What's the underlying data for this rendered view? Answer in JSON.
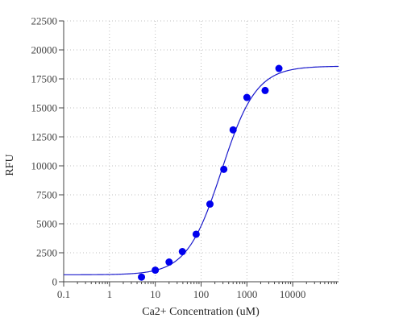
{
  "chart_data": {
    "type": "scatter",
    "xlabel": "Ca2+ Concentration (uM)",
    "ylabel": "RFU",
    "xscale": "log",
    "xlim": [
      0.1,
      100000
    ],
    "ylim": [
      0,
      22500
    ],
    "grid": true,
    "x_ticks": [
      {
        "value": 0.1,
        "label": "0.1"
      },
      {
        "value": 1,
        "label": "1"
      },
      {
        "value": 10,
        "label": "10"
      },
      {
        "value": 100,
        "label": "100"
      },
      {
        "value": 1000,
        "label": "1000"
      },
      {
        "value": 10000,
        "label": "10000"
      }
    ],
    "y_ticks": [
      {
        "value": 0,
        "label": "0"
      },
      {
        "value": 2500,
        "label": "2500"
      },
      {
        "value": 5000,
        "label": "5000"
      },
      {
        "value": 7500,
        "label": "7500"
      },
      {
        "value": 10000,
        "label": "10000"
      },
      {
        "value": 12500,
        "label": "12500"
      },
      {
        "value": 15000,
        "label": "15000"
      },
      {
        "value": 17500,
        "label": "17500"
      },
      {
        "value": 20000,
        "label": "20000"
      },
      {
        "value": 22500,
        "label": "22500"
      }
    ],
    "points": [
      {
        "x": 5,
        "y": 400
      },
      {
        "x": 10,
        "y": 1000
      },
      {
        "x": 20,
        "y": 1700
      },
      {
        "x": 39,
        "y": 2600
      },
      {
        "x": 78,
        "y": 4100
      },
      {
        "x": 156,
        "y": 6700
      },
      {
        "x": 313,
        "y": 9700
      },
      {
        "x": 500,
        "y": 13100
      },
      {
        "x": 1000,
        "y": 15900
      },
      {
        "x": 2500,
        "y": 16500
      },
      {
        "x": 5000,
        "y": 18400
      }
    ],
    "fit": {
      "model": "4PL",
      "bottom": 600,
      "top": 18600,
      "ec50": 280,
      "hill": 1.15
    },
    "colors": {
      "points": "#0000ee",
      "fit_line": "#1a1acc",
      "grid": "#bfbfbf",
      "axis": "#444444"
    }
  }
}
